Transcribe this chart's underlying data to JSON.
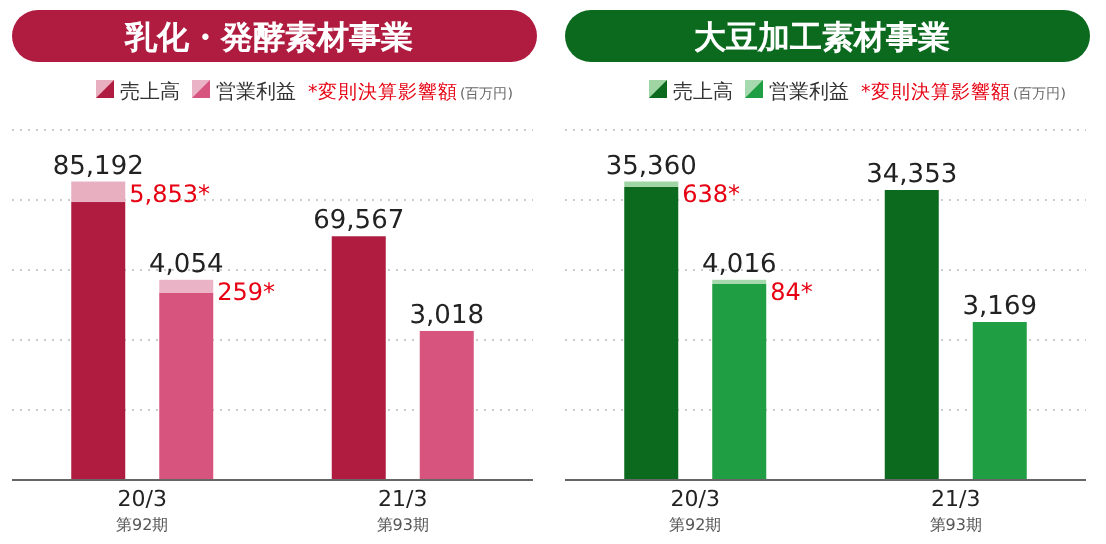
{
  "chart_data": [
    {
      "type": "bar",
      "title": "乳化・発酵素材事業",
      "categories": [
        "20/3\n第92期",
        "21/3\n第93期"
      ],
      "stacked": true,
      "legend": "top",
      "totals": [
        [
          "85,192",
          null
        ],
        [
          "4,054",
          null
        ]
      ],
      "grid": "y",
      "annotations": [
        "*変則決算影響額",
        "(百万円)",
        "5,853*",
        "259*"
      ],
      "series": [
        {
          "name": "売上高",
          "color": "#b01c40",
          "values": [
            79339,
            69567
          ],
          "value_labels": [
            null,
            "69,567"
          ]
        },
        {
          "color": "#e8afc0",
          "values": [
            5853,
            null
          ]
        },
        {
          "name": "営業利益",
          "color": "#d6547e",
          "axis": "y2",
          "values": [
            3795,
            3018
          ],
          "value_labels": [
            null,
            "3,018"
          ]
        },
        {
          "color": "#eab3c6",
          "axis": "y2",
          "values": [
            259,
            null
          ]
        }
      ]
    },
    {
      "type": "bar",
      "title": "大豆加工素材事業",
      "categories": [
        "20/3\n第92期",
        "21/3\n第93期"
      ],
      "stacked": true,
      "legend": "top",
      "totals": [
        [
          "35,360",
          null
        ],
        [
          "4,016",
          null
        ]
      ],
      "grid": "y",
      "annotations": [
        "*変則決算影響額",
        "(百万円)",
        "638*",
        "84*"
      ],
      "series": [
        {
          "name": "売上高",
          "color": "#0b6a1e",
          "values": [
            34722,
            34353
          ],
          "value_labels": [
            null,
            "34,353"
          ]
        },
        {
          "color": "#9fd4a3",
          "values": [
            638,
            null
          ]
        },
        {
          "name": "営業利益",
          "color": "#1f9e43",
          "axis": "y2",
          "values": [
            3932,
            3169
          ],
          "value_labels": [
            null,
            "3,169"
          ]
        },
        {
          "color": "#a6d9ae",
          "axis": "y2",
          "values": [
            84,
            null
          ]
        }
      ]
    }
  ]
}
